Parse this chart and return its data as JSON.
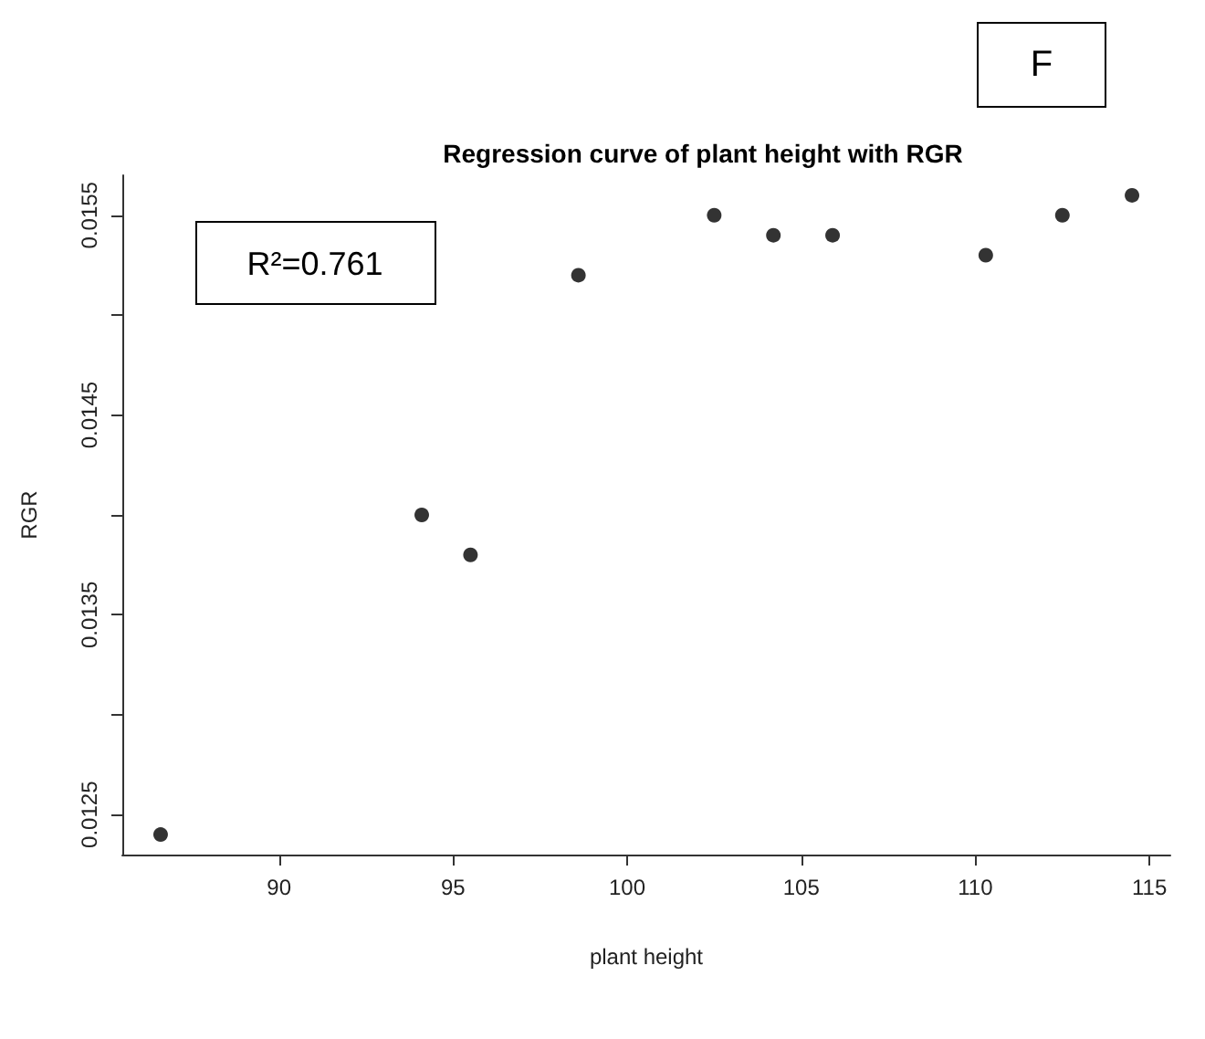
{
  "chart_data": {
    "type": "scatter",
    "title": "Regression curve of plant height with RGR",
    "xlabel": "plant height",
    "ylabel": "RGR",
    "annotations": [
      "R²=0.761",
      "F"
    ],
    "x": [
      86.6,
      94.1,
      95.5,
      98.6,
      102.5,
      104.2,
      105.9,
      110.3,
      112.5,
      114.5
    ],
    "values": [
      0.0124,
      0.014,
      0.0138,
      0.0152,
      0.0155,
      0.0154,
      0.0154,
      0.0153,
      0.0155,
      0.0156
    ],
    "color": "#000000",
    "marker": "circle",
    "xlim": [
      85.5,
      115.6
    ],
    "xticks": [
      90,
      95,
      100,
      105,
      110,
      115
    ],
    "ylim": [
      0.0123,
      0.0157
    ],
    "yticks": [
      0.0125,
      {
        "value": 0.013,
        "label": null
      },
      0.0135,
      {
        "value": 0.014,
        "label": null
      },
      0.0145,
      {
        "value": 0.015,
        "label": null
      },
      0.0155
    ],
    "grid": false
  }
}
